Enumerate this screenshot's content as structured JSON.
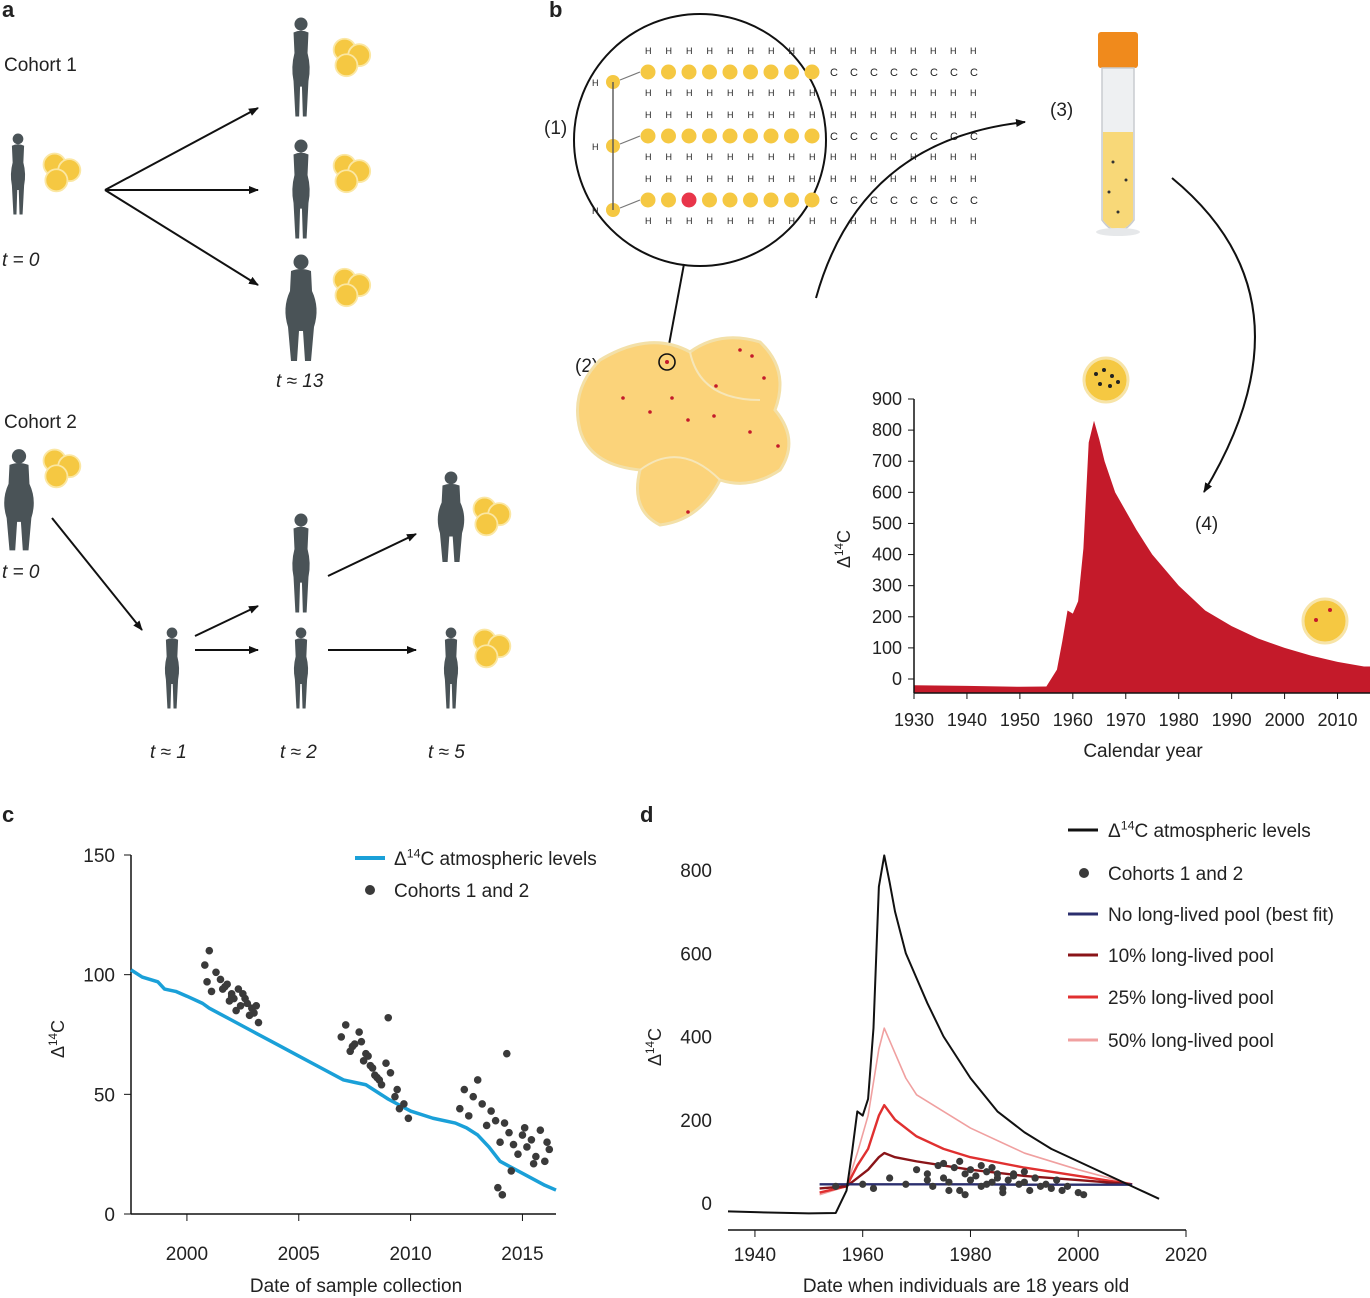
{
  "panel_letters": {
    "a": "a",
    "b": "b",
    "c": "c",
    "d": "d"
  },
  "colors": {
    "silhouette": "#4a5357",
    "fat_cell": "#f5c842",
    "fat_cell_light": "#f9dc7a",
    "atm_red": "#c41a2a",
    "atm_blue": "#1aa0d8",
    "dot": "#3a3a3a",
    "none_pool": "#2b2f6e",
    "pool10": "#8a1418",
    "pool25": "#e03030",
    "pool50": "#f0a0a0"
  },
  "panel_a": {
    "cohort1": "Cohort 1",
    "cohort2": "Cohort 2",
    "t0": "t = 0",
    "t13": "t ≈ 13",
    "t0b": "t = 0",
    "t1": "t ≈ 1",
    "t2": "t ≈ 2",
    "t5": "t ≈ 5"
  },
  "panel_b": {
    "label1": "(1)",
    "label2": "(2)",
    "label3": "(3)",
    "label4": "(4)",
    "chain_c": "C",
    "chain_h": "H",
    "icons": [
      "fat-droplet-many-dots",
      "fat-droplet-few-dots",
      "test-tube"
    ]
  },
  "chart_data": [
    {
      "id": "panel-b",
      "type": "area",
      "title": "",
      "xlabel": "Calendar year",
      "ylabel": "Δ14C",
      "xlim": [
        1930,
        2015
      ],
      "ylim": [
        0,
        900
      ],
      "xticks": [
        "1930",
        "1940",
        "1950",
        "1960",
        "1970",
        "1980",
        "1990",
        "2000",
        "2010"
      ],
      "yticks": [
        "0",
        "100",
        "200",
        "300",
        "400",
        "500",
        "600",
        "700",
        "800",
        "900"
      ],
      "series": [
        {
          "name": "Δ14C atmospheric levels",
          "x": [
            1930,
            1940,
            1950,
            1955,
            1957,
            1958,
            1959,
            1960,
            1961,
            1962,
            1963,
            1964,
            1965,
            1966,
            1968,
            1970,
            1972,
            1975,
            1980,
            1985,
            1990,
            1995,
            2000,
            2005,
            2010,
            2015
          ],
          "y": [
            -20,
            -22,
            -25,
            -24,
            30,
            120,
            220,
            210,
            250,
            420,
            760,
            830,
            770,
            700,
            600,
            540,
            480,
            400,
            300,
            220,
            170,
            130,
            100,
            75,
            55,
            40
          ]
        }
      ]
    },
    {
      "id": "panel-c",
      "type": "scatter",
      "title": "",
      "xlabel": "Date of sample collection",
      "ylabel": "Δ14C",
      "xlim": [
        1997.5,
        2016.5
      ],
      "ylim": [
        0,
        150
      ],
      "xticks": [
        "2000",
        "2005",
        "2010",
        "2015"
      ],
      "yticks": [
        "0",
        "50",
        "100",
        "150"
      ],
      "legend": [
        "Δ14C atmospheric levels",
        "Cohorts 1 and 2"
      ],
      "series": [
        {
          "name": "Δ14C atmospheric levels",
          "kind": "line",
          "x": [
            1997.5,
            1998,
            1998.7,
            1999,
            1999.5,
            2000,
            2000.7,
            2001,
            2002,
            2003,
            2004,
            2005,
            2006,
            2007,
            2007.5,
            2008,
            2009,
            2010,
            2011,
            2012,
            2012.5,
            2013,
            2013.5,
            2014,
            2015,
            2016,
            2016.5
          ],
          "y": [
            102,
            99,
            97,
            94,
            93,
            91,
            88,
            86,
            81,
            76,
            71,
            66,
            61,
            56,
            55,
            54,
            48,
            43,
            40,
            38,
            36,
            33,
            28,
            22,
            17,
            12,
            10
          ]
        },
        {
          "name": "Cohorts 1 and 2",
          "kind": "scatter",
          "x": [
            2000.8,
            2000.9,
            2001.0,
            2001.1,
            2001.3,
            2001.5,
            2001.6,
            2001.8,
            2002.0,
            2002.1,
            2002.3,
            2002.4,
            2002.5,
            2002.7,
            2002.9,
            2003.0,
            2003.2,
            2001.9,
            2002.2,
            2002.6,
            2002.8,
            2003.1,
            2001.7,
            2002.0,
            2006.9,
            2007.1,
            2007.3,
            2007.5,
            2007.7,
            2007.9,
            2008.1,
            2008.3,
            2008.5,
            2008.7,
            2008.9,
            2009.1,
            2009.3,
            2009.5,
            2007.4,
            2007.8,
            2008.2,
            2008.6,
            2009.0,
            2009.4,
            2009.7,
            2009.9,
            2008.4,
            2008.0,
            2012.2,
            2012.4,
            2012.6,
            2012.8,
            2013.0,
            2013.2,
            2013.4,
            2013.6,
            2013.8,
            2014.0,
            2014.2,
            2014.4,
            2014.6,
            2014.8,
            2015.0,
            2015.2,
            2015.4,
            2015.6,
            2015.8,
            2016.0,
            2016.2,
            2014.3,
            2014.5,
            2015.1,
            2015.5,
            2016.1,
            2013.9,
            2014.1
          ],
          "y": [
            104,
            97,
            110,
            93,
            101,
            98,
            94,
            96,
            91,
            90,
            94,
            87,
            92,
            88,
            86,
            84,
            80,
            89,
            85,
            90,
            83,
            87,
            95,
            92,
            74,
            79,
            68,
            71,
            76,
            64,
            66,
            61,
            57,
            54,
            63,
            59,
            49,
            44,
            70,
            72,
            62,
            56,
            82,
            52,
            46,
            40,
            58,
            67,
            44,
            52,
            41,
            49,
            56,
            46,
            37,
            43,
            39,
            30,
            38,
            34,
            29,
            25,
            33,
            28,
            31,
            24,
            35,
            22,
            27,
            67,
            18,
            36,
            21,
            30,
            11,
            8
          ]
        }
      ]
    },
    {
      "id": "panel-d",
      "type": "line",
      "title": "",
      "xlabel": "Date when individuals are 18 years old",
      "ylabel": "Δ14C",
      "xlim": [
        1935,
        2020
      ],
      "ylim": [
        -20,
        850
      ],
      "xticks": [
        "1940",
        "1960",
        "1980",
        "2000",
        "2020"
      ],
      "yticks": [
        "0",
        "200",
        "400",
        "600",
        "800"
      ],
      "legend": [
        "Δ14C atmospheric levels",
        "Cohorts 1 and 2",
        "No long-lived pool (best fit)",
        "10% long-lived pool",
        "25% long-lived pool",
        "50% long-lived pool"
      ],
      "series": [
        {
          "name": "Δ14C atmospheric levels",
          "x": [
            1935,
            1940,
            1950,
            1955,
            1957,
            1958,
            1959,
            1960,
            1961,
            1962,
            1963,
            1964,
            1965,
            1966,
            1968,
            1970,
            1972,
            1975,
            1980,
            1985,
            1990,
            1995,
            2000,
            2005,
            2010,
            2015
          ],
          "y": [
            -20,
            -22,
            -25,
            -24,
            30,
            120,
            220,
            210,
            250,
            420,
            760,
            835,
            770,
            700,
            600,
            540,
            480,
            400,
            300,
            220,
            170,
            130,
            100,
            70,
            40,
            10
          ]
        },
        {
          "name": "No long-lived pool (best fit)",
          "x": [
            1952,
            1960,
            1970,
            1980,
            1990,
            2000,
            2010
          ],
          "y": [
            45,
            45,
            45,
            45,
            44,
            44,
            44
          ]
        },
        {
          "name": "10% long-lived pool",
          "x": [
            1952,
            1957,
            1959,
            1961,
            1963,
            1964,
            1966,
            1970,
            1975,
            1980,
            1990,
            2000,
            2010
          ],
          "y": [
            35,
            40,
            60,
            80,
            110,
            120,
            110,
            100,
            90,
            80,
            65,
            55,
            45
          ]
        },
        {
          "name": "25% long-lived pool",
          "x": [
            1952,
            1957,
            1959,
            1961,
            1963,
            1964,
            1966,
            1970,
            1975,
            1980,
            1990,
            2000,
            2010
          ],
          "y": [
            25,
            40,
            90,
            130,
            210,
            235,
            200,
            160,
            130,
            110,
            85,
            65,
            45
          ]
        },
        {
          "name": "50% long-lived pool",
          "x": [
            1952,
            1957,
            1959,
            1961,
            1963,
            1964,
            1966,
            1968,
            1970,
            1975,
            1980,
            1990,
            2000,
            2010
          ],
          "y": [
            20,
            40,
            120,
            210,
            370,
            420,
            360,
            300,
            260,
            220,
            180,
            120,
            80,
            45
          ]
        },
        {
          "name": "Cohorts 1 and 2",
          "kind": "scatter",
          "x": [
            1955,
            1960,
            1962,
            1965,
            1968,
            1970,
            1972,
            1973,
            1974,
            1975,
            1976,
            1977,
            1978,
            1979,
            1980,
            1981,
            1982,
            1983,
            1984,
            1985,
            1986,
            1987,
            1988,
            1989,
            1990,
            1991,
            1992,
            1993,
            1994,
            1995,
            1996,
            1997,
            1998,
            2000,
            2001,
            1975,
            1978,
            1980,
            1982,
            1985,
            1988,
            1990,
            1972,
            1976,
            1984,
            1986,
            1992,
            1979,
            1983
          ],
          "y": [
            40,
            45,
            35,
            60,
            45,
            80,
            70,
            40,
            90,
            60,
            50,
            85,
            30,
            70,
            55,
            65,
            40,
            75,
            50,
            60,
            35,
            55,
            70,
            45,
            50,
            30,
            60,
            40,
            45,
            35,
            55,
            30,
            40,
            25,
            20,
            95,
            100,
            80,
            90,
            70,
            65,
            75,
            55,
            30,
            85,
            25,
            60,
            20,
            45
          ]
        }
      ]
    }
  ]
}
